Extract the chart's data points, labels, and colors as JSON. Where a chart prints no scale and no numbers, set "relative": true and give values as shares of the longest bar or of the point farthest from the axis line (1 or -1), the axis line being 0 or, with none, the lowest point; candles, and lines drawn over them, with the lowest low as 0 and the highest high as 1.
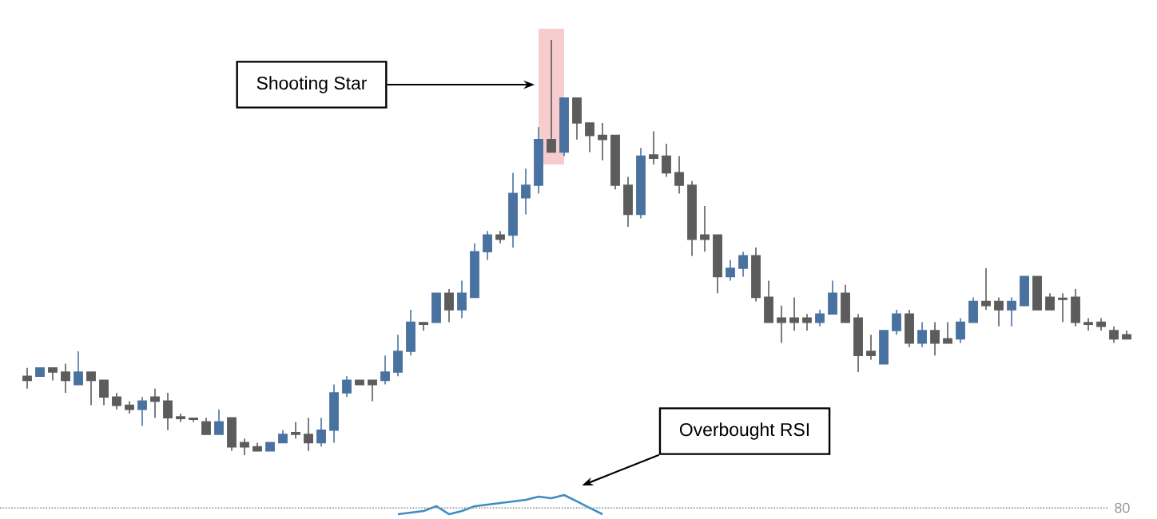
{
  "chart_data": [
    {
      "type": "candlestick",
      "relative": true,
      "categories": [
        null,
        null,
        null,
        null,
        null,
        null,
        null,
        null,
        null,
        null,
        null,
        null,
        null,
        null,
        null,
        null,
        null,
        null,
        null,
        null,
        null,
        null,
        null,
        null,
        null,
        null,
        null,
        null,
        null,
        null,
        null,
        null,
        null,
        null,
        null,
        null,
        null,
        null,
        null,
        null,
        null,
        null,
        null,
        null,
        null,
        null,
        null,
        null,
        null,
        null,
        null,
        null,
        null,
        null,
        null,
        null,
        null,
        null,
        null,
        null,
        null,
        null,
        null,
        null,
        null,
        null,
        null,
        null,
        null,
        null,
        null,
        null,
        null,
        null,
        null,
        null,
        null,
        null,
        null,
        null,
        null,
        null,
        null,
        null,
        null,
        null,
        null
      ],
      "ohlc": [
        [
          0.19,
          0.21,
          0.16,
          0.18
        ],
        [
          0.19,
          0.21,
          0.19,
          0.21
        ],
        [
          0.21,
          0.21,
          0.18,
          0.2
        ],
        [
          0.2,
          0.22,
          0.15,
          0.18
        ],
        [
          0.17,
          0.25,
          0.17,
          0.2
        ],
        [
          0.2,
          0.2,
          0.12,
          0.18
        ],
        [
          0.18,
          0.18,
          0.12,
          0.14
        ],
        [
          0.14,
          0.15,
          0.11,
          0.12
        ],
        [
          0.12,
          0.13,
          0.1,
          0.11
        ],
        [
          0.11,
          0.14,
          0.07,
          0.13
        ],
        [
          0.14,
          0.16,
          0.09,
          0.13
        ],
        [
          0.13,
          0.15,
          0.06,
          0.09
        ],
        [
          0.092,
          0.1,
          0.08,
          0.088
        ],
        [
          0.089,
          0.09,
          0.08,
          0.086
        ],
        [
          0.08,
          0.09,
          0.05,
          0.05
        ],
        [
          0.05,
          0.11,
          0.05,
          0.08
        ],
        [
          0.09,
          0.09,
          0.01,
          0.02
        ],
        [
          0.03,
          0.04,
          0,
          0.02
        ],
        [
          0.02,
          0.03,
          0.01,
          0.01
        ],
        [
          0.01,
          0.03,
          0.01,
          0.03
        ],
        [
          0.03,
          0.06,
          0.03,
          0.05
        ],
        [
          0.054,
          0.08,
          0.04,
          0.05
        ],
        [
          0.05,
          0.09,
          0.01,
          0.03
        ],
        [
          0.03,
          0.09,
          0.02,
          0.06
        ],
        [
          0.06,
          0.17,
          0.03,
          0.15
        ],
        [
          0.15,
          0.19,
          0.14,
          0.18
        ],
        [
          0.18,
          0.18,
          0.17,
          0.17
        ],
        [
          0.18,
          0.18,
          0.13,
          0.17
        ],
        [
          0.18,
          0.24,
          0.17,
          0.2
        ],
        [
          0.2,
          0.29,
          0.19,
          0.25
        ],
        [
          0.25,
          0.35,
          0.24,
          0.32
        ],
        [
          0.319,
          0.32,
          0.3,
          0.315
        ],
        [
          0.32,
          0.39,
          0.32,
          0.39
        ],
        [
          0.39,
          0.4,
          0.32,
          0.35
        ],
        [
          0.35,
          0.42,
          0.33,
          0.39
        ],
        [
          0.38,
          0.51,
          0.38,
          0.49
        ],
        [
          0.49,
          0.54,
          0.47,
          0.53
        ],
        [
          0.53,
          0.54,
          0.51,
          0.52
        ],
        [
          0.53,
          0.68,
          0.5,
          0.63
        ],
        [
          0.62,
          0.69,
          0.58,
          0.65
        ],
        [
          0.65,
          0.79,
          0.63,
          0.76
        ],
        [
          0.76,
          1,
          0.73,
          0.73
        ],
        [
          0.73,
          0.86,
          0.72,
          0.86
        ],
        [
          0.86,
          0.86,
          0.76,
          0.8
        ],
        [
          0.8,
          0.8,
          0.73,
          0.77
        ],
        [
          0.77,
          0.8,
          0.71,
          0.76
        ],
        [
          0.77,
          0.77,
          0.64,
          0.65
        ],
        [
          0.65,
          0.67,
          0.55,
          0.58
        ],
        [
          0.58,
          0.74,
          0.57,
          0.72
        ],
        [
          0.723,
          0.78,
          0.7,
          0.715
        ],
        [
          0.72,
          0.75,
          0.67,
          0.68
        ],
        [
          0.68,
          0.72,
          0.63,
          0.65
        ],
        [
          0.65,
          0.66,
          0.48,
          0.52
        ],
        [
          0.53,
          0.6,
          0.49,
          0.52
        ],
        [
          0.53,
          0.53,
          0.39,
          0.43
        ],
        [
          0.43,
          0.47,
          0.42,
          0.45
        ],
        [
          0.45,
          0.49,
          0.43,
          0.48
        ],
        [
          0.48,
          0.5,
          0.37,
          0.38
        ],
        [
          0.38,
          0.42,
          0.32,
          0.32
        ],
        [
          0.33,
          0.36,
          0.27,
          0.32
        ],
        [
          0.33,
          0.38,
          0.3,
          0.32
        ],
        [
          0.33,
          0.34,
          0.3,
          0.32
        ],
        [
          0.32,
          0.35,
          0.31,
          0.34
        ],
        [
          0.34,
          0.42,
          0.34,
          0.39
        ],
        [
          0.39,
          0.41,
          0.32,
          0.32
        ],
        [
          0.33,
          0.34,
          0.2,
          0.24
        ],
        [
          0.25,
          0.29,
          0.23,
          0.24
        ],
        [
          0.22,
          0.3,
          0.22,
          0.3
        ],
        [
          0.3,
          0.35,
          0.29,
          0.34
        ],
        [
          0.34,
          0.35,
          0.26,
          0.27
        ],
        [
          0.27,
          0.32,
          0.26,
          0.3
        ],
        [
          0.3,
          0.32,
          0.24,
          0.27
        ],
        [
          0.28,
          0.32,
          0.27,
          0.27
        ],
        [
          0.28,
          0.33,
          0.27,
          0.32
        ],
        [
          0.32,
          0.38,
          0.32,
          0.37
        ],
        [
          0.37,
          0.45,
          0.35,
          0.36
        ],
        [
          0.37,
          0.38,
          0.31,
          0.35
        ],
        [
          0.35,
          0.38,
          0.31,
          0.37
        ],
        [
          0.36,
          0.43,
          0.36,
          0.43
        ],
        [
          0.43,
          0.43,
          0.35,
          0.35
        ],
        [
          0.38,
          0.39,
          0.35,
          0.35
        ],
        [
          0.378,
          0.39,
          0.32,
          0.375
        ],
        [
          0.38,
          0.4,
          0.31,
          0.32
        ],
        [
          0.319,
          0.33,
          0.3,
          0.315
        ],
        [
          0.32,
          0.33,
          0.3,
          0.31
        ],
        [
          0.3,
          0.31,
          0.27,
          0.28
        ],
        [
          0.29,
          0.3,
          0.28,
          0.28
        ]
      ],
      "colors": [
        "#5c5c5c",
        "#4a72a0",
        "#5c5c5c",
        "#5c5c5c",
        "#4a72a0",
        "#5c5c5c",
        "#5c5c5c",
        "#5c5c5c",
        "#5c5c5c",
        "#4a72a0",
        "#5c5c5c",
        "#5c5c5c",
        "#5c5c5c",
        "#5c5c5c",
        "#5c5c5c",
        "#4a72a0",
        "#5c5c5c",
        "#5c5c5c",
        "#5c5c5c",
        "#4a72a0",
        "#4a72a0",
        "#5c5c5c",
        "#5c5c5c",
        "#4a72a0",
        "#4a72a0",
        "#4a72a0",
        "#5c5c5c",
        "#5c5c5c",
        "#4a72a0",
        "#4a72a0",
        "#4a72a0",
        "#5c5c5c",
        "#4a72a0",
        "#5c5c5c",
        "#4a72a0",
        "#4a72a0",
        "#4a72a0",
        "#5c5c5c",
        "#4a72a0",
        "#4a72a0",
        "#4a72a0",
        "#5c5c5c",
        "#4a72a0",
        "#5c5c5c",
        "#5c5c5c",
        "#5c5c5c",
        "#5c5c5c",
        "#5c5c5c",
        "#4a72a0",
        "#5c5c5c",
        "#5c5c5c",
        "#5c5c5c",
        "#5c5c5c",
        "#5c5c5c",
        "#5c5c5c",
        "#4a72a0",
        "#4a72a0",
        "#5c5c5c",
        "#5c5c5c",
        "#5c5c5c",
        "#5c5c5c",
        "#5c5c5c",
        "#4a72a0",
        "#4a72a0",
        "#5c5c5c",
        "#5c5c5c",
        "#5c5c5c",
        "#4a72a0",
        "#4a72a0",
        "#5c5c5c",
        "#4a72a0",
        "#5c5c5c",
        "#5c5c5c",
        "#4a72a0",
        "#4a72a0",
        "#5c5c5c",
        "#5c5c5c",
        "#4a72a0",
        "#4a72a0",
        "#5c5c5c",
        "#5c5c5c",
        "#5c5c5c",
        "#5c5c5c",
        "#5c5c5c",
        "#5c5c5c",
        "#5c5c5c",
        "#5c5c5c"
      ],
      "annotations": [
        "Shooting Star"
      ]
    },
    {
      "type": "line",
      "relative": true,
      "categories": [
        null,
        null,
        null,
        null,
        null,
        null,
        null,
        null,
        null,
        null,
        null,
        null,
        null,
        null,
        null,
        null,
        null,
        null,
        null,
        null,
        null,
        null,
        null,
        null,
        null,
        null,
        null,
        null,
        null,
        null,
        null,
        null,
        null,
        null,
        null,
        null,
        null,
        null,
        null,
        null,
        null,
        null,
        null,
        null,
        null,
        null,
        null,
        null,
        null,
        null,
        null,
        null,
        null,
        null,
        null,
        null,
        null,
        null,
        null,
        null,
        null,
        null,
        null,
        null,
        null,
        null,
        null,
        null,
        null,
        null,
        null,
        null,
        null,
        null,
        null,
        null,
        null,
        null,
        null,
        null,
        null,
        null,
        null,
        null,
        null,
        null,
        null
      ],
      "series": [
        {
          "color": "#3c8dc5",
          "values": [
            null,
            null,
            null,
            null,
            null,
            null,
            null,
            null,
            null,
            null,
            null,
            null,
            null,
            null,
            null,
            null,
            null,
            null,
            null,
            null,
            null,
            null,
            null,
            null,
            null,
            null,
            null,
            null,
            null,
            0,
            0.08,
            0.17,
            0.42,
            0,
            0.17,
            0.42,
            0.5,
            0.58,
            0.67,
            0.75,
            0.92,
            0.83,
            1,
            0.67,
            0.33,
            0,
            null,
            null,
            null,
            null,
            null,
            null,
            null,
            null,
            null,
            null,
            null,
            null,
            null,
            null,
            null,
            null,
            null,
            null,
            null,
            null,
            null,
            null,
            null,
            null,
            null,
            null,
            null,
            null,
            null,
            null,
            null,
            null,
            null,
            null,
            null,
            null,
            null,
            null,
            null,
            null,
            null
          ]
        }
      ],
      "ref_lines": [
        {
          "axis": "y",
          "value": 0.33,
          "color": "#9a9a9a",
          "line_style": "dotted"
        }
      ],
      "annotations": [
        "Overbought RSI",
        "80"
      ]
    }
  ]
}
